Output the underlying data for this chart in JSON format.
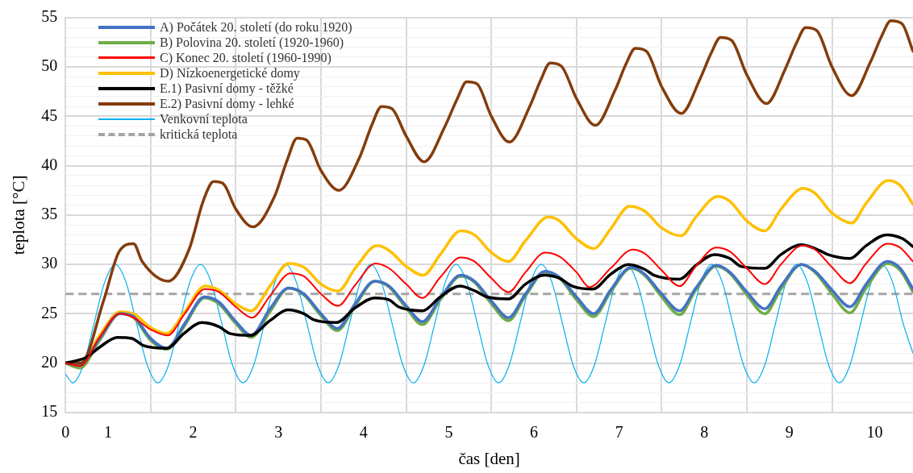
{
  "chart_data": {
    "type": "line",
    "xlabel": "čas [den]",
    "ylabel": "teplota [°C]",
    "xlim": [
      0,
      9.95
    ],
    "xticks": [
      {
        "value": 0,
        "label": "0"
      },
      {
        "value": 0.5,
        "label": "1"
      },
      {
        "value": 1,
        "label": null
      },
      {
        "value": 1.5,
        "label": "2"
      },
      {
        "value": 2,
        "label": null
      },
      {
        "value": 2.5,
        "label": "3"
      },
      {
        "value": 3,
        "label": null
      },
      {
        "value": 3.5,
        "label": "4"
      },
      {
        "value": 4,
        "label": null
      },
      {
        "value": 4.5,
        "label": "5"
      },
      {
        "value": 5,
        "label": null
      },
      {
        "value": 5.5,
        "label": "6"
      },
      {
        "value": 6,
        "label": null
      },
      {
        "value": 6.5,
        "label": "7"
      },
      {
        "value": 7,
        "label": null
      },
      {
        "value": 7.5,
        "label": "8"
      },
      {
        "value": 8,
        "label": null
      },
      {
        "value": 8.5,
        "label": "9"
      },
      {
        "value": 9,
        "label": null
      },
      {
        "value": 9.5,
        "label": "10"
      }
    ],
    "ylim": [
      15,
      55
    ],
    "yticks": [
      15,
      {
        "value": 16,
        "label": null
      },
      {
        "value": 17,
        "label": null
      },
      {
        "value": 18,
        "label": null
      },
      {
        "value": 19,
        "label": null
      },
      20,
      {
        "value": 21,
        "label": null
      },
      {
        "value": 22,
        "label": null
      },
      {
        "value": 23,
        "label": null
      },
      {
        "value": 24,
        "label": null
      },
      25,
      {
        "value": 26,
        "label": null
      },
      {
        "value": 27,
        "label": null
      },
      {
        "value": 28,
        "label": null
      },
      {
        "value": 29,
        "label": null
      },
      30,
      {
        "value": 31,
        "label": null
      },
      {
        "value": 32,
        "label": null
      },
      {
        "value": 33,
        "label": null
      },
      {
        "value": 34,
        "label": null
      },
      35,
      {
        "value": 36,
        "label": null
      },
      {
        "value": 37,
        "label": null
      },
      {
        "value": 38,
        "label": null
      },
      {
        "value": 39,
        "label": null
      },
      40,
      {
        "value": 41,
        "label": null
      },
      {
        "value": 42,
        "label": null
      },
      {
        "value": 43,
        "label": null
      },
      {
        "value": 44,
        "label": null
      },
      45,
      {
        "value": 46,
        "label": null
      },
      {
        "value": 47,
        "label": null
      },
      {
        "value": 48,
        "label": null
      },
      {
        "value": 49,
        "label": null
      },
      50,
      {
        "value": 51,
        "label": null
      },
      {
        "value": 52,
        "label": null
      },
      {
        "value": 53,
        "label": null
      },
      {
        "value": 54,
        "label": null
      },
      55
    ],
    "grid": true,
    "legend": "top left",
    "marker": "none",
    "line_style": "solid",
    "series": [
      {
        "name": "A) Počátek 20. století (do roku 1920)",
        "color": "#4472c4",
        "x": [
          0,
          0.17,
          0.4,
          0.64,
          0.8,
          1.0,
          1.19,
          1.4,
          1.63,
          1.8,
          2.0,
          2.18,
          2.4,
          2.62,
          2.8,
          3.0,
          3.19,
          3.4,
          3.63,
          3.8,
          4.0,
          4.19,
          4.4,
          4.64,
          4.8,
          5.0,
          5.2,
          5.4,
          5.63,
          5.8,
          6.0,
          6.2,
          6.4,
          6.64,
          6.8,
          7.0,
          7.21,
          7.4,
          7.64,
          7.8,
          8.0,
          8.21,
          8.4,
          8.64,
          8.8,
          9.0,
          9.21,
          9.4,
          9.65,
          9.8,
          9.95
        ],
        "values": [
          20,
          19.8,
          22.5,
          25.0,
          24.7,
          22.5,
          21.5,
          24.0,
          26.7,
          26.2,
          24.2,
          22.8,
          25.5,
          27.6,
          27.0,
          25.0,
          23.5,
          26.0,
          28.3,
          27.8,
          25.8,
          24.2,
          26.6,
          28.9,
          28.3,
          26.3,
          24.6,
          27.0,
          29.3,
          28.7,
          26.7,
          25.0,
          27.4,
          29.7,
          29.0,
          27.0,
          25.3,
          27.6,
          29.9,
          29.2,
          27.2,
          25.5,
          27.8,
          30.0,
          29.3,
          27.4,
          25.7,
          28.0,
          30.3,
          29.6,
          27.5
        ]
      },
      {
        "name": "B) Polovina 20. století (1920-1960)",
        "color": "#70ad47",
        "x": [
          0,
          0.17,
          0.4,
          0.64,
          0.8,
          1.0,
          1.19,
          1.4,
          1.63,
          1.8,
          2.0,
          2.18,
          2.4,
          2.62,
          2.8,
          3.0,
          3.19,
          3.4,
          3.63,
          3.8,
          4.0,
          4.19,
          4.4,
          4.64,
          4.8,
          5.0,
          5.2,
          5.4,
          5.63,
          5.8,
          6.0,
          6.2,
          6.4,
          6.64,
          6.8,
          7.0,
          7.21,
          7.4,
          7.64,
          7.8,
          8.0,
          8.21,
          8.4,
          8.64,
          8.8,
          9.0,
          9.21,
          9.4,
          9.65,
          9.8,
          9.95
        ],
        "values": [
          20,
          19.5,
          22.3,
          25.0,
          24.6,
          22.3,
          21.4,
          23.8,
          26.6,
          26.0,
          24.0,
          22.6,
          25.2,
          27.6,
          26.9,
          24.8,
          23.3,
          25.8,
          28.3,
          27.7,
          25.6,
          23.9,
          26.4,
          28.8,
          28.2,
          26.0,
          24.3,
          26.8,
          29.2,
          28.6,
          26.4,
          24.7,
          27.2,
          29.6,
          28.9,
          26.7,
          24.9,
          27.4,
          29.8,
          29.1,
          26.9,
          25.0,
          27.5,
          30.0,
          29.2,
          27.0,
          25.1,
          27.6,
          30.1,
          29.4,
          27.2
        ]
      },
      {
        "name": "C) Konec 20. století (1960-1990)",
        "color": "#ff0000",
        "x": [
          0,
          0.17,
          0.4,
          0.64,
          0.8,
          1.0,
          1.2,
          1.4,
          1.64,
          1.8,
          2.0,
          2.19,
          2.4,
          2.64,
          2.8,
          3.0,
          3.2,
          3.4,
          3.64,
          3.8,
          4.0,
          4.19,
          4.4,
          4.64,
          4.8,
          5.0,
          5.2,
          5.4,
          5.63,
          5.8,
          6.0,
          6.15,
          6.4,
          6.66,
          6.8,
          7.0,
          7.21,
          7.4,
          7.64,
          7.8,
          8.0,
          8.21,
          8.4,
          8.65,
          8.8,
          9.0,
          9.21,
          9.4,
          9.65,
          9.8,
          9.95
        ],
        "values": [
          20,
          19.7,
          22.6,
          25.0,
          24.6,
          23.4,
          22.8,
          25.0,
          27.5,
          27.2,
          25.7,
          24.6,
          26.8,
          29.1,
          28.8,
          27.0,
          25.8,
          27.9,
          30.1,
          29.6,
          28.0,
          26.6,
          28.7,
          30.7,
          30.3,
          28.6,
          27.2,
          29.2,
          31.2,
          30.8,
          29.2,
          27.7,
          29.6,
          31.5,
          31.1,
          29.4,
          27.8,
          29.8,
          31.7,
          31.3,
          29.6,
          28.0,
          30.0,
          31.9,
          31.5,
          29.7,
          28.1,
          30.1,
          32.1,
          31.7,
          30.3
        ]
      },
      {
        "name": "D) Nízkoenergetické domy",
        "color": "#ffc000",
        "x": [
          0,
          0.17,
          0.4,
          0.64,
          0.8,
          1.0,
          1.19,
          1.4,
          1.64,
          1.8,
          2.0,
          2.18,
          2.4,
          2.62,
          2.8,
          3.0,
          3.2,
          3.4,
          3.66,
          3.8,
          4.0,
          4.2,
          4.4,
          4.64,
          4.8,
          5.0,
          5.2,
          5.4,
          5.67,
          5.8,
          6.0,
          6.2,
          6.4,
          6.62,
          6.8,
          7.0,
          7.23,
          7.4,
          7.66,
          7.8,
          8.0,
          8.21,
          8.4,
          8.66,
          8.8,
          9.0,
          9.23,
          9.4,
          9.66,
          9.8,
          9.95
        ],
        "values": [
          20,
          19.9,
          22.8,
          25.2,
          25.0,
          23.6,
          23.0,
          25.2,
          27.8,
          27.4,
          26.0,
          25.3,
          27.8,
          30.1,
          29.7,
          28.0,
          27.3,
          29.6,
          31.9,
          31.4,
          29.8,
          28.9,
          31.0,
          33.4,
          33.0,
          31.2,
          30.3,
          32.4,
          34.8,
          34.4,
          32.6,
          31.6,
          33.6,
          35.9,
          35.4,
          33.7,
          32.9,
          34.8,
          36.9,
          36.4,
          34.4,
          33.4,
          35.6,
          37.7,
          37.2,
          35.2,
          34.2,
          36.2,
          38.5,
          38.0,
          36.1
        ]
      },
      {
        "name": "E.1) Pasivní domy - těžké",
        "color": "#000000",
        "x": [
          0,
          0.25,
          0.4,
          0.61,
          0.78,
          0.91,
          1.19,
          1.39,
          1.6,
          1.8,
          1.93,
          2.17,
          2.4,
          2.61,
          2.8,
          2.91,
          3.18,
          3.4,
          3.63,
          3.8,
          3.91,
          4.19,
          4.4,
          4.63,
          4.81,
          4.95,
          5.2,
          5.4,
          5.62,
          5.8,
          5.95,
          6.19,
          6.4,
          6.61,
          6.8,
          6.91,
          7.21,
          7.4,
          7.62,
          7.8,
          7.93,
          8.21,
          8.4,
          8.64,
          8.83,
          8.95,
          9.21,
          9.4,
          9.64,
          9.83,
          9.95
        ],
        "values": [
          20,
          20.6,
          21.6,
          22.6,
          22.5,
          21.8,
          21.5,
          23.0,
          24.1,
          23.7,
          23.0,
          22.8,
          24.3,
          25.4,
          25.0,
          24.4,
          24.1,
          25.6,
          26.6,
          26.4,
          25.7,
          25.3,
          26.7,
          27.8,
          27.3,
          26.7,
          26.5,
          28.0,
          28.9,
          28.6,
          27.8,
          27.5,
          29.0,
          30.0,
          29.5,
          28.9,
          28.5,
          29.9,
          31.0,
          30.6,
          29.8,
          29.6,
          31.0,
          32.0,
          31.5,
          31.0,
          30.6,
          31.9,
          33.0,
          32.6,
          31.8
        ]
      },
      {
        "name": "E.2) Pasivní domy - lehké",
        "color": "#843c0c",
        "x": [
          0,
          0.18,
          0.45,
          0.63,
          0.8,
          0.9,
          1.21,
          1.45,
          1.62,
          1.74,
          1.85,
          2.0,
          2.2,
          2.45,
          2.6,
          2.72,
          2.83,
          3.0,
          3.21,
          3.45,
          3.6,
          3.71,
          3.83,
          4.0,
          4.21,
          4.45,
          4.6,
          4.71,
          4.83,
          5.0,
          5.21,
          5.45,
          5.58,
          5.69,
          5.82,
          6.0,
          6.22,
          6.45,
          6.58,
          6.69,
          6.82,
          7.0,
          7.23,
          7.45,
          7.58,
          7.69,
          7.82,
          8.0,
          8.23,
          8.45,
          8.58,
          8.69,
          8.82,
          9.0,
          9.23,
          9.45,
          9.58,
          9.69,
          9.82,
          9.95
        ],
        "values": [
          20,
          20.0,
          26.4,
          31.3,
          32.1,
          30.3,
          28.3,
          31.5,
          36.5,
          38.4,
          38.2,
          35.6,
          33.8,
          36.8,
          40.5,
          42.8,
          42.6,
          39.5,
          37.5,
          40.8,
          44.2,
          46.0,
          45.8,
          43.0,
          40.4,
          43.9,
          46.8,
          48.5,
          48.3,
          45.0,
          42.4,
          46.0,
          48.7,
          50.4,
          50.1,
          46.8,
          44.1,
          47.6,
          50.3,
          51.9,
          51.6,
          48.0,
          45.3,
          48.8,
          51.4,
          53.0,
          52.7,
          49.2,
          46.3,
          49.8,
          52.4,
          54.0,
          53.7,
          50.0,
          47.1,
          50.5,
          53.1,
          54.7,
          54.4,
          51.6
        ]
      },
      {
        "name": "Venkovní teplota",
        "color": "#00b0f0",
        "x": [
          0,
          0.085,
          0.21,
          0.335,
          0.46,
          0.585,
          0.71,
          0.835,
          0.96,
          1.085,
          1.21,
          1.335,
          1.46,
          1.585,
          1.71,
          1.835,
          1.96,
          2.085,
          2.21,
          2.335,
          2.46,
          2.585,
          2.71,
          2.835,
          2.96,
          3.085,
          3.21,
          3.335,
          3.46,
          3.585,
          3.71,
          3.835,
          3.96,
          4.085,
          4.21,
          4.335,
          4.46,
          4.585,
          4.71,
          4.835,
          4.96,
          5.085,
          5.21,
          5.335,
          5.46,
          5.585,
          5.71,
          5.835,
          5.96,
          6.085,
          6.21,
          6.335,
          6.46,
          6.585,
          6.71,
          6.835,
          6.96,
          7.085,
          7.21,
          7.335,
          7.46,
          7.585,
          7.71,
          7.835,
          7.96,
          8.085,
          8.21,
          8.335,
          8.46,
          8.585,
          8.71,
          8.835,
          8.96,
          9.085,
          9.21,
          9.335,
          9.46,
          9.585,
          9.71,
          9.835,
          9.95
        ],
        "values": [
          18.9,
          18,
          19.8,
          24,
          28.2,
          30,
          28.2,
          24,
          19.8,
          18,
          19.8,
          24,
          28.2,
          30,
          28.2,
          24,
          19.8,
          18,
          19.8,
          24,
          28.2,
          30,
          28.2,
          24,
          19.8,
          18,
          19.8,
          24,
          28.2,
          30,
          28.2,
          24,
          19.8,
          18,
          19.8,
          24,
          28.2,
          30,
          28.2,
          24,
          19.8,
          18,
          19.8,
          24,
          28.2,
          30,
          28.2,
          24,
          19.8,
          18,
          19.8,
          24,
          28.2,
          30,
          28.2,
          24,
          19.8,
          18,
          19.8,
          24,
          28.2,
          30,
          28.2,
          24,
          19.8,
          18,
          19.8,
          24,
          28.2,
          30,
          28.2,
          24,
          19.8,
          18,
          19.8,
          24,
          28.2,
          30,
          28.2,
          24,
          21.0
        ]
      }
    ],
    "ref_lines": [
      {
        "axis": "y",
        "value": 27,
        "label": "kritická teplota",
        "color": "#a5a5a5",
        "line_style": "dashed"
      }
    ]
  }
}
